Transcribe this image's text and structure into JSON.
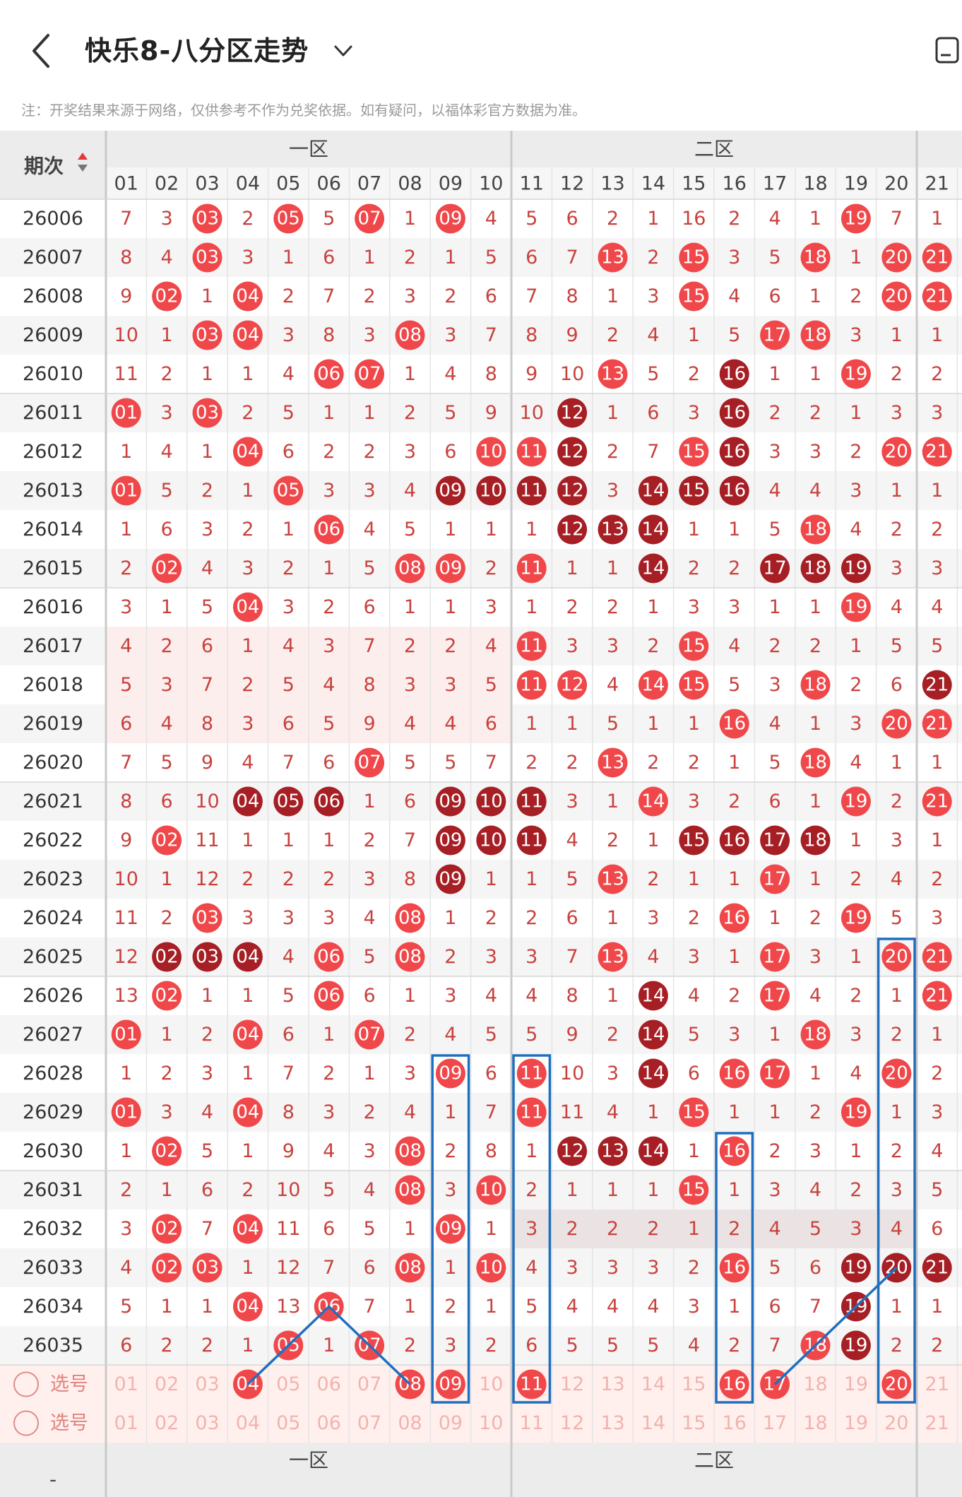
{
  "header": {
    "title": "快乐8-八分区走势",
    "back_icon": "back-arrow-icon",
    "dropdown_icon": "chevron-down-icon",
    "corner_icon": "card-icon"
  },
  "notice": "注：开奖结果来源于网络，仅供参考不作为兑奖依据。如有疑问，以福体彩官方数据为准。",
  "table": {
    "period_header": "期次",
    "zone_labels": [
      "一区",
      "二区"
    ],
    "numbers": [
      "01",
      "02",
      "03",
      "04",
      "05",
      "06",
      "07",
      "08",
      "09",
      "10",
      "11",
      "12",
      "13",
      "14",
      "15",
      "16",
      "17",
      "18",
      "19",
      "20",
      "21"
    ],
    "rows": [
      {
        "period": "26006",
        "cells": [
          "7",
          "3",
          "03",
          "2",
          "05",
          "5",
          "07",
          "1",
          "09",
          "4",
          "5",
          "6",
          "2",
          "1",
          "16",
          "2",
          "4",
          "1",
          "19",
          "7",
          "1"
        ]
      },
      {
        "period": "26007",
        "cells": [
          "8",
          "4",
          "03",
          "3",
          "1",
          "6",
          "1",
          "2",
          "1",
          "5",
          "6",
          "7",
          "13",
          "2",
          "15",
          "3",
          "5",
          "18",
          "1",
          "20",
          "21"
        ]
      },
      {
        "period": "26008",
        "cells": [
          "9",
          "02",
          "1",
          "04",
          "2",
          "7",
          "2",
          "3",
          "2",
          "6",
          "7",
          "8",
          "1",
          "3",
          "15",
          "4",
          "6",
          "1",
          "2",
          "20",
          "21"
        ]
      },
      {
        "period": "26009",
        "cells": [
          "10",
          "1",
          "03",
          "04",
          "3",
          "8",
          "3",
          "08",
          "3",
          "7",
          "8",
          "9",
          "2",
          "4",
          "1",
          "5",
          "17",
          "18",
          "3",
          "1",
          "1"
        ]
      },
      {
        "period": "26010",
        "cells": [
          "11",
          "2",
          "1",
          "1",
          "4",
          "06",
          "07",
          "1",
          "4",
          "8",
          "9",
          "10",
          "13",
          "5",
          "2",
          "16",
          "1",
          "1",
          "19",
          "2",
          "2"
        ]
      },
      {
        "period": "26011",
        "cells": [
          "01",
          "3",
          "03",
          "2",
          "5",
          "1",
          "1",
          "2",
          "5",
          "9",
          "10",
          "12",
          "1",
          "6",
          "3",
          "16",
          "2",
          "2",
          "1",
          "3",
          "3"
        ]
      },
      {
        "period": "26012",
        "cells": [
          "1",
          "4",
          "1",
          "04",
          "6",
          "2",
          "2",
          "3",
          "6",
          "10",
          "11",
          "12",
          "2",
          "7",
          "15",
          "16",
          "3",
          "3",
          "2",
          "20",
          "21"
        ]
      },
      {
        "period": "26013",
        "cells": [
          "01",
          "5",
          "2",
          "1",
          "05",
          "3",
          "3",
          "4",
          "09",
          "10",
          "11",
          "12",
          "3",
          "14",
          "15",
          "16",
          "4",
          "4",
          "3",
          "1",
          "1"
        ]
      },
      {
        "period": "26014",
        "cells": [
          "1",
          "6",
          "3",
          "2",
          "1",
          "06",
          "4",
          "5",
          "1",
          "1",
          "1",
          "12",
          "13",
          "14",
          "1",
          "1",
          "5",
          "18",
          "4",
          "2",
          "2"
        ]
      },
      {
        "period": "26015",
        "cells": [
          "2",
          "02",
          "4",
          "3",
          "2",
          "1",
          "5",
          "08",
          "09",
          "2",
          "11",
          "1",
          "1",
          "14",
          "2",
          "2",
          "17",
          "18",
          "19",
          "3",
          "3"
        ]
      },
      {
        "period": "26016",
        "cells": [
          "3",
          "1",
          "5",
          "04",
          "3",
          "2",
          "6",
          "1",
          "1",
          "3",
          "1",
          "2",
          "2",
          "1",
          "3",
          "3",
          "1",
          "1",
          "19",
          "4",
          "4"
        ]
      },
      {
        "period": "26017",
        "cells": [
          "4",
          "2",
          "6",
          "1",
          "4",
          "3",
          "7",
          "2",
          "2",
          "4",
          "11",
          "3",
          "3",
          "2",
          "15",
          "4",
          "2",
          "2",
          "1",
          "5",
          "5"
        ]
      },
      {
        "period": "26018",
        "cells": [
          "5",
          "3",
          "7",
          "2",
          "5",
          "4",
          "8",
          "3",
          "3",
          "5",
          "11",
          "12",
          "4",
          "14",
          "15",
          "5",
          "3",
          "18",
          "2",
          "6",
          "21"
        ]
      },
      {
        "period": "26019",
        "cells": [
          "6",
          "4",
          "8",
          "3",
          "6",
          "5",
          "9",
          "4",
          "4",
          "6",
          "1",
          "1",
          "5",
          "1",
          "1",
          "16",
          "4",
          "1",
          "3",
          "20",
          "21"
        ]
      },
      {
        "period": "26020",
        "cells": [
          "7",
          "5",
          "9",
          "4",
          "7",
          "6",
          "07",
          "5",
          "5",
          "7",
          "2",
          "2",
          "13",
          "2",
          "2",
          "1",
          "5",
          "18",
          "4",
          "1",
          "1"
        ]
      },
      {
        "period": "26021",
        "cells": [
          "8",
          "6",
          "10",
          "04",
          "05",
          "06",
          "1",
          "6",
          "09",
          "10",
          "11",
          "3",
          "1",
          "14",
          "3",
          "2",
          "6",
          "1",
          "19",
          "2",
          "21"
        ]
      },
      {
        "period": "26022",
        "cells": [
          "9",
          "02",
          "11",
          "1",
          "1",
          "1",
          "2",
          "7",
          "09",
          "10",
          "11",
          "4",
          "2",
          "1",
          "15",
          "16",
          "17",
          "18",
          "1",
          "3",
          "1"
        ]
      },
      {
        "period": "26023",
        "cells": [
          "10",
          "1",
          "12",
          "2",
          "2",
          "2",
          "3",
          "8",
          "09",
          "1",
          "1",
          "5",
          "13",
          "2",
          "1",
          "1",
          "17",
          "1",
          "2",
          "4",
          "2"
        ]
      },
      {
        "period": "26024",
        "cells": [
          "11",
          "2",
          "03",
          "3",
          "3",
          "3",
          "4",
          "08",
          "1",
          "2",
          "2",
          "6",
          "1",
          "3",
          "2",
          "16",
          "1",
          "2",
          "19",
          "5",
          "3"
        ]
      },
      {
        "period": "26025",
        "cells": [
          "12",
          "02",
          "03",
          "04",
          "4",
          "06",
          "5",
          "08",
          "2",
          "3",
          "3",
          "7",
          "13",
          "4",
          "3",
          "1",
          "17",
          "3",
          "1",
          "20",
          "21"
        ]
      },
      {
        "period": "26026",
        "cells": [
          "13",
          "02",
          "1",
          "1",
          "5",
          "06",
          "6",
          "1",
          "3",
          "4",
          "4",
          "8",
          "1",
          "14",
          "4",
          "2",
          "17",
          "4",
          "2",
          "1",
          "21"
        ]
      },
      {
        "period": "26027",
        "cells": [
          "01",
          "1",
          "2",
          "04",
          "6",
          "1",
          "07",
          "2",
          "4",
          "5",
          "5",
          "9",
          "2",
          "14",
          "5",
          "3",
          "1",
          "18",
          "3",
          "2",
          "1"
        ]
      },
      {
        "period": "26028",
        "cells": [
          "1",
          "2",
          "3",
          "1",
          "7",
          "2",
          "1",
          "3",
          "09",
          "6",
          "11",
          "10",
          "3",
          "14",
          "6",
          "16",
          "17",
          "1",
          "4",
          "20",
          "2"
        ]
      },
      {
        "period": "26029",
        "cells": [
          "01",
          "3",
          "4",
          "04",
          "8",
          "3",
          "2",
          "4",
          "1",
          "7",
          "11",
          "11",
          "4",
          "1",
          "15",
          "1",
          "1",
          "2",
          "19",
          "1",
          "3"
        ]
      },
      {
        "period": "26030",
        "cells": [
          "1",
          "02",
          "5",
          "1",
          "9",
          "4",
          "3",
          "08",
          "2",
          "8",
          "1",
          "12",
          "13",
          "14",
          "1",
          "16",
          "2",
          "3",
          "1",
          "2",
          "4"
        ]
      },
      {
        "period": "26031",
        "cells": [
          "2",
          "1",
          "6",
          "2",
          "10",
          "5",
          "4",
          "08",
          "3",
          "10",
          "2",
          "1",
          "1",
          "1",
          "15",
          "1",
          "3",
          "4",
          "2",
          "3",
          "5"
        ]
      },
      {
        "period": "26032",
        "cells": [
          "3",
          "02",
          "7",
          "04",
          "11",
          "6",
          "5",
          "1",
          "09",
          "1",
          "3",
          "2",
          "2",
          "2",
          "1",
          "2",
          "4",
          "5",
          "3",
          "4",
          "6"
        ]
      },
      {
        "period": "26033",
        "cells": [
          "4",
          "02",
          "03",
          "1",
          "12",
          "7",
          "6",
          "08",
          "1",
          "10",
          "4",
          "3",
          "3",
          "3",
          "2",
          "16",
          "5",
          "6",
          "19",
          "20",
          "21"
        ]
      },
      {
        "period": "26034",
        "cells": [
          "5",
          "1",
          "1",
          "04",
          "13",
          "06",
          "7",
          "1",
          "2",
          "1",
          "5",
          "4",
          "4",
          "4",
          "3",
          "1",
          "6",
          "7",
          "19",
          "1",
          "1"
        ]
      },
      {
        "period": "26035",
        "cells": [
          "6",
          "2",
          "2",
          "1",
          "05",
          "1",
          "07",
          "2",
          "3",
          "2",
          "6",
          "5",
          "5",
          "5",
          "4",
          "2",
          "7",
          "18",
          "19",
          "2",
          "2"
        ]
      }
    ],
    "select_label": "选号",
    "select_icon": "radio-circle-icon",
    "select_rows": [
      {
        "label": "选号",
        "selected": [
          "04",
          "08",
          "09",
          "11",
          "16",
          "17",
          "20"
        ]
      },
      {
        "label": "选号",
        "selected": []
      }
    ],
    "footer_period": "-"
  },
  "colors": {
    "ball_red": "#f0484a",
    "ball_dark": "#a61f25",
    "miss_text": "#c8423e",
    "period_text": "#333333",
    "highlight_box": "#1f6fbf"
  }
}
